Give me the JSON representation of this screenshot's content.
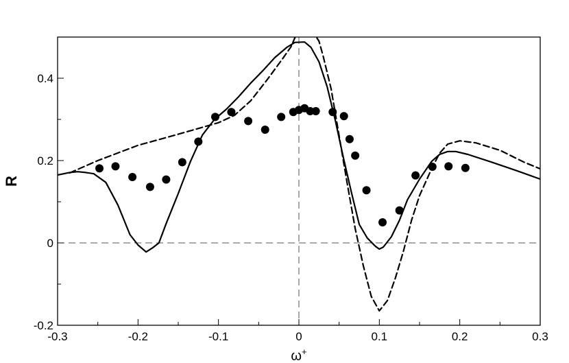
{
  "chart_data": {
    "type": "line",
    "xlabel": "ω",
    "xlabel_superscript": "+",
    "ylabel": "R",
    "xlim": [
      -0.3,
      0.3
    ],
    "ylim": [
      -0.2,
      0.5
    ],
    "x_ticks": [
      -0.3,
      -0.2,
      -0.1,
      0,
      0.1,
      0.2,
      0.3
    ],
    "x_tick_labels": [
      "-0.3",
      "-0.2",
      "-0.1",
      "0",
      "0.1",
      "0.2",
      "0.3"
    ],
    "y_ticks": [
      -0.2,
      0,
      0.2,
      0.4
    ],
    "y_tick_labels": [
      "-0.2",
      "0",
      "0.2",
      "0.4"
    ],
    "reference_lines": {
      "x": 0,
      "y": 0
    },
    "grid": false,
    "legend": "none",
    "series": [
      {
        "style": "solid",
        "x": [
          -0.3,
          -0.285,
          -0.275,
          -0.265,
          -0.255,
          -0.24,
          -0.225,
          -0.21,
          -0.2,
          -0.19,
          -0.182,
          -0.174,
          -0.165,
          -0.15,
          -0.135,
          -0.12,
          -0.105,
          -0.09,
          -0.075,
          -0.06,
          -0.045,
          -0.03,
          -0.015,
          -0.005,
          0.007,
          0.015,
          0.025,
          0.035,
          0.045,
          0.055,
          0.065,
          0.075,
          0.085,
          0.095,
          0.1,
          0.105,
          0.115,
          0.125,
          0.135,
          0.15,
          0.165,
          0.175,
          0.185,
          0.195,
          0.21,
          0.24,
          0.27,
          0.3
        ],
        "y": [
          0.165,
          0.171,
          0.173,
          0.171,
          0.168,
          0.147,
          0.092,
          0.02,
          -0.005,
          -0.022,
          -0.012,
          0.0,
          0.047,
          0.12,
          0.197,
          0.262,
          0.3,
          0.325,
          0.355,
          0.388,
          0.418,
          0.45,
          0.475,
          0.487,
          0.488,
          0.475,
          0.44,
          0.38,
          0.3,
          0.21,
          0.125,
          0.045,
          0.012,
          -0.008,
          -0.015,
          -0.01,
          0.015,
          0.055,
          0.105,
          0.155,
          0.198,
          0.215,
          0.222,
          0.222,
          0.215,
          0.196,
          0.176,
          0.155
        ]
      },
      {
        "style": "dashed",
        "x": [
          -0.285,
          -0.25,
          -0.2,
          -0.15,
          -0.1,
          -0.08,
          -0.06,
          -0.04,
          -0.02,
          -0.01,
          -0.005,
          0.0,
          0.01,
          0.02,
          0.025,
          0.03,
          0.04,
          0.05,
          0.06,
          0.07,
          0.08,
          0.09,
          0.1,
          0.11,
          0.12,
          0.13,
          0.14,
          0.15,
          0.165,
          0.175,
          0.185,
          0.2,
          0.22,
          0.25,
          0.28,
          0.3
        ],
        "y": [
          0.17,
          0.2,
          0.237,
          0.264,
          0.292,
          0.31,
          0.345,
          0.395,
          0.448,
          0.476,
          0.498,
          0.52,
          0.525,
          0.505,
          0.49,
          0.455,
          0.375,
          0.26,
          0.145,
          0.035,
          -0.055,
          -0.13,
          -0.165,
          -0.14,
          -0.085,
          -0.02,
          0.055,
          0.115,
          0.18,
          0.218,
          0.24,
          0.248,
          0.243,
          0.225,
          0.196,
          0.18
        ]
      },
      {
        "style": "markers",
        "x": [
          -0.248,
          -0.228,
          -0.207,
          -0.185,
          -0.165,
          -0.145,
          -0.125,
          -0.104,
          -0.084,
          -0.063,
          -0.042,
          -0.022,
          -0.007,
          0.0,
          0.007,
          0.014,
          0.021,
          0.042,
          0.056,
          0.063,
          0.07,
          0.084,
          0.104,
          0.125,
          0.145,
          0.166,
          0.186,
          0.207
        ],
        "y": [
          0.181,
          0.186,
          0.16,
          0.136,
          0.154,
          0.196,
          0.246,
          0.306,
          0.318,
          0.296,
          0.275,
          0.306,
          0.318,
          0.323,
          0.327,
          0.32,
          0.32,
          0.318,
          0.308,
          0.252,
          0.212,
          0.128,
          0.05,
          0.079,
          0.164,
          0.185,
          0.186,
          0.182
        ]
      }
    ]
  }
}
